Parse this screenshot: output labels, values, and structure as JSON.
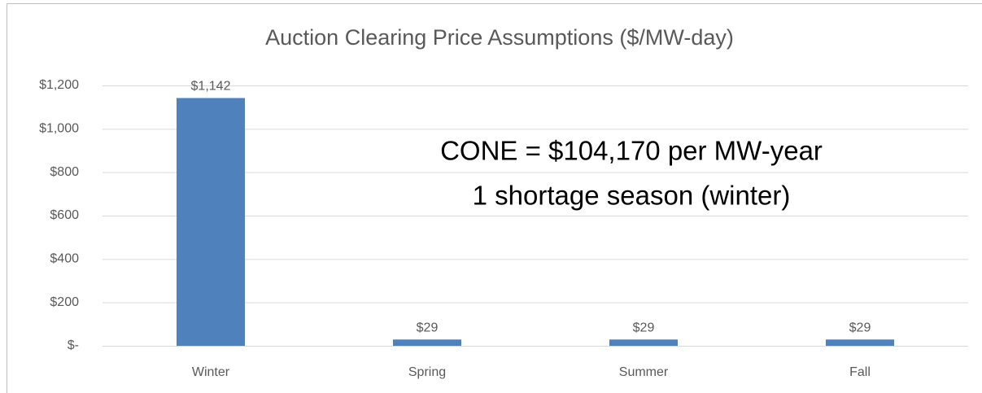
{
  "chart_data": {
    "type": "bar",
    "title": "Auction Clearing Price Assumptions ($/MW-day)",
    "categories": [
      "Winter",
      "Spring",
      "Summer",
      "Fall"
    ],
    "values": [
      1142,
      29,
      29,
      29
    ],
    "value_labels": [
      "$1,142",
      "$29",
      "$29",
      "$29"
    ],
    "color": "#4f81bd",
    "ylim": [
      0,
      1200
    ],
    "yticks": [
      {
        "value": 0,
        "label": "$-"
      },
      {
        "value": 200,
        "label": "$200"
      },
      {
        "value": 400,
        "label": "$400"
      },
      {
        "value": 600,
        "label": "$600"
      },
      {
        "value": 800,
        "label": "$800"
      },
      {
        "value": 1000,
        "label": "$1,000"
      },
      {
        "value": 1200,
        "label": "$1,200"
      }
    ],
    "grid": true,
    "annotations": [
      "CONE = $104,170 per MW-year",
      "1 shortage season (winter)"
    ]
  }
}
